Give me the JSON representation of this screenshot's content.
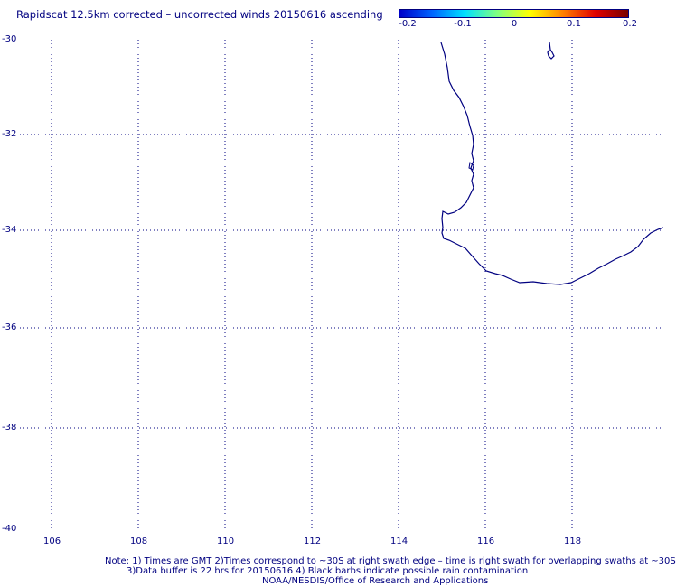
{
  "title": "Rapidscat 12.5km corrected – uncorrected winds 20150616 ascending",
  "colorbar": {
    "gradient": [
      "#0000c8",
      "#0064ff",
      "#00e0ff",
      "#80ff80",
      "#ffff00",
      "#ff8000",
      "#e00000",
      "#780000"
    ],
    "ticks": [
      "-0.2",
      "-0.1",
      "0",
      "0.1",
      "0.2"
    ]
  },
  "map": {
    "lat_range": [
      -40,
      -30
    ],
    "lon_range": [
      105,
      120
    ],
    "y_labels": [
      "-30",
      "-32",
      "-34",
      "-36",
      "-38",
      "-40"
    ],
    "x_labels": [
      "106",
      "108",
      "110",
      "112",
      "114",
      "116",
      "118"
    ],
    "line_color": "#000080"
  },
  "notes": {
    "line1": "Note: 1) Times are GMT 2)Times correspond to ~30S at right swath edge – time is right swath for overlapping swaths at ~30S",
    "line2": "3)Data buffer is 22 hrs for 20150616 4) Black barbs indicate possible rain contamination",
    "line3": "NOAA/NESDIS/Office of Research and Applications"
  }
}
